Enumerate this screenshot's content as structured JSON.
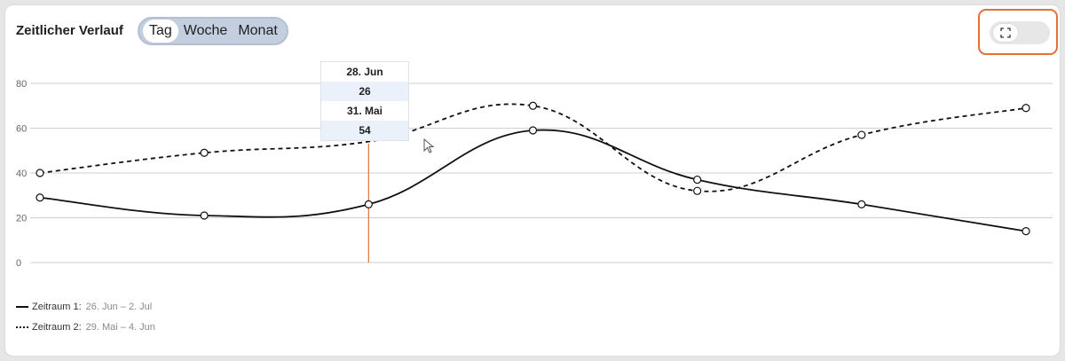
{
  "header": {
    "title": "Zeitlicher Verlauf"
  },
  "range_tabs": [
    {
      "label": "Tag",
      "active": true
    },
    {
      "label": "Woche",
      "active": false
    },
    {
      "label": "Monat",
      "active": false
    }
  ],
  "expand_toggle": {
    "icon": "expand-icon",
    "highlight_color": "#e1703a"
  },
  "tooltip": {
    "date1": "28. Jun",
    "value1": "26",
    "date2": "31. Mai",
    "value2": "54"
  },
  "legend": [
    {
      "label": "Zeitraum 1:",
      "range": "26. Jun – 2. Jul",
      "style": "solid"
    },
    {
      "label": "Zeitraum 2:",
      "range": "29. Mai – 4. Jun",
      "style": "dashed"
    }
  ],
  "chart_data": {
    "type": "line",
    "y_ticks": [
      "80",
      "60",
      "40",
      "20",
      "0"
    ],
    "ylim": [
      0,
      80
    ],
    "grid": true,
    "legend_position": "bottom-left",
    "hover_index": 2,
    "hover_color": "#e1703a",
    "series": [
      {
        "name": "Zeitraum 1",
        "style": "solid",
        "values": [
          29,
          21,
          26,
          59,
          37,
          26,
          14
        ]
      },
      {
        "name": "Zeitraum 2",
        "style": "dashed",
        "values": [
          40,
          49,
          54,
          70,
          32,
          57,
          69
        ]
      }
    ]
  }
}
